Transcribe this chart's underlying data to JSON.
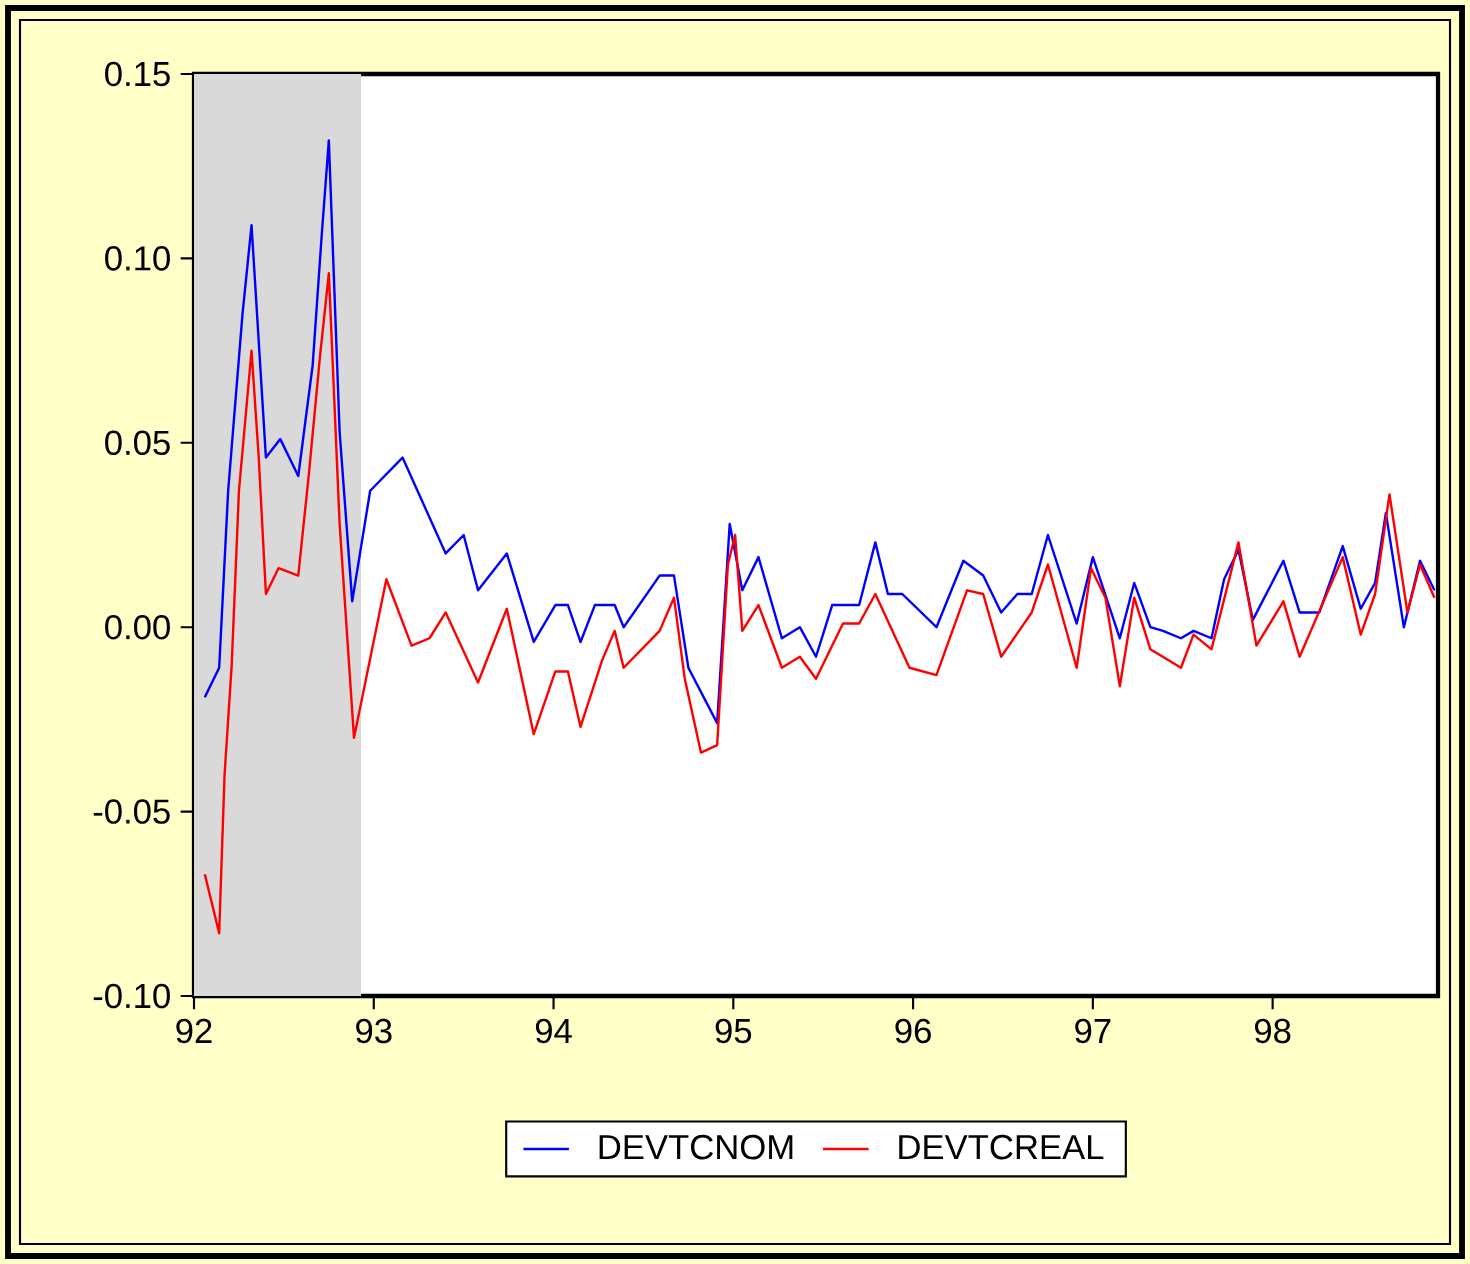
{
  "chart_data": {
    "type": "line",
    "xlim": [
      92,
      98.92
    ],
    "xticks": [
      92,
      93,
      94,
      95,
      96,
      97,
      98
    ],
    "ylim": [
      -0.1,
      0.15
    ],
    "yticks": [
      {
        "value": -0.1,
        "label": "-0.10"
      },
      {
        "value": -0.05,
        "label": "-0.05"
      },
      {
        "value": 0.0,
        "label": "0.00"
      },
      {
        "value": 0.05,
        "label": "0.05"
      },
      {
        "value": 0.1,
        "label": "0.10"
      },
      {
        "value": 0.15,
        "label": "0.15"
      }
    ],
    "bands": [
      {
        "axis": "x",
        "from": 92,
        "to": 92.93,
        "color": "#d9d9d9"
      }
    ],
    "legend": "bottom",
    "grid": false,
    "marker": "none",
    "line_style": "solid",
    "series": [
      {
        "name": "DEVTCNOM",
        "color": "#0000ff",
        "x": [
          92.06,
          92.14,
          92.19,
          92.27,
          92.32,
          92.4,
          92.48,
          92.58,
          92.66,
          92.71,
          92.75,
          92.81,
          92.88,
          92.98,
          93.16,
          93.4,
          93.5,
          93.58,
          93.74,
          93.89,
          94.01,
          94.08,
          94.15,
          94.23,
          94.34,
          94.39,
          94.59,
          94.67,
          94.75,
          94.91,
          94.98,
          95.05,
          95.14,
          95.27,
          95.37,
          95.46,
          95.55,
          95.7,
          95.79,
          95.86,
          95.94,
          96.13,
          96.28,
          96.39,
          96.49,
          96.58,
          96.66,
          96.75,
          96.91,
          97.0,
          97.15,
          97.23,
          97.32,
          97.39,
          97.49,
          97.56,
          97.66,
          97.73,
          97.81,
          97.89,
          98.06,
          98.15,
          98.26,
          98.39,
          98.49,
          98.57,
          98.63,
          98.73,
          98.82,
          98.9
        ],
        "values": [
          -0.019,
          -0.011,
          0.037,
          0.085,
          0.109,
          0.046,
          0.051,
          0.041,
          0.071,
          0.106,
          0.132,
          0.053,
          0.007,
          0.037,
          0.046,
          0.02,
          0.025,
          0.01,
          0.02,
          -0.004,
          0.006,
          0.006,
          -0.004,
          0.006,
          0.006,
          0.0,
          0.014,
          0.014,
          -0.011,
          -0.026,
          0.028,
          0.01,
          0.019,
          -0.003,
          0.0,
          -0.008,
          0.006,
          0.006,
          0.023,
          0.009,
          0.009,
          0.0,
          0.018,
          0.014,
          0.004,
          0.009,
          0.009,
          0.025,
          0.001,
          0.019,
          -0.003,
          0.012,
          0.0,
          -0.001,
          -0.003,
          -0.001,
          -0.003,
          0.013,
          0.021,
          0.002,
          0.018,
          0.004,
          0.004,
          0.022,
          0.005,
          0.012,
          0.031,
          0.0,
          0.018,
          0.01
        ]
      },
      {
        "name": "DEVTCREAL",
        "color": "#ff0000",
        "x": [
          92.06,
          92.14,
          92.17,
          92.21,
          92.25,
          92.32,
          92.36,
          92.4,
          92.47,
          92.58,
          92.64,
          92.7,
          92.75,
          92.81,
          92.89,
          93.07,
          93.21,
          93.31,
          93.4,
          93.58,
          93.74,
          93.89,
          94.01,
          94.08,
          94.15,
          94.27,
          94.34,
          94.39,
          94.59,
          94.67,
          94.73,
          94.82,
          94.91,
          94.97,
          95.01,
          95.05,
          95.14,
          95.27,
          95.37,
          95.46,
          95.61,
          95.7,
          95.79,
          95.98,
          96.13,
          96.3,
          96.39,
          96.49,
          96.66,
          96.75,
          96.91,
          96.99,
          97.07,
          97.15,
          97.23,
          97.32,
          97.49,
          97.56,
          97.66,
          97.81,
          97.91,
          98.06,
          98.15,
          98.39,
          98.49,
          98.57,
          98.65,
          98.75,
          98.82,
          98.9
        ],
        "values": [
          -0.067,
          -0.083,
          -0.04,
          -0.01,
          0.037,
          0.075,
          0.046,
          0.009,
          0.016,
          0.014,
          0.042,
          0.073,
          0.096,
          0.028,
          -0.03,
          0.013,
          -0.005,
          -0.003,
          0.004,
          -0.015,
          0.005,
          -0.029,
          -0.012,
          -0.012,
          -0.027,
          -0.009,
          -0.001,
          -0.011,
          -0.001,
          0.008,
          -0.014,
          -0.034,
          -0.032,
          0.017,
          0.025,
          -0.001,
          0.006,
          -0.011,
          -0.008,
          -0.014,
          0.001,
          0.001,
          0.009,
          -0.011,
          -0.013,
          0.01,
          0.009,
          -0.008,
          0.004,
          0.017,
          -0.011,
          0.016,
          0.008,
          -0.016,
          0.008,
          -0.006,
          -0.011,
          -0.002,
          -0.006,
          0.023,
          -0.005,
          0.007,
          -0.008,
          0.019,
          -0.002,
          0.009,
          0.036,
          0.004,
          0.017,
          0.008
        ]
      }
    ]
  }
}
